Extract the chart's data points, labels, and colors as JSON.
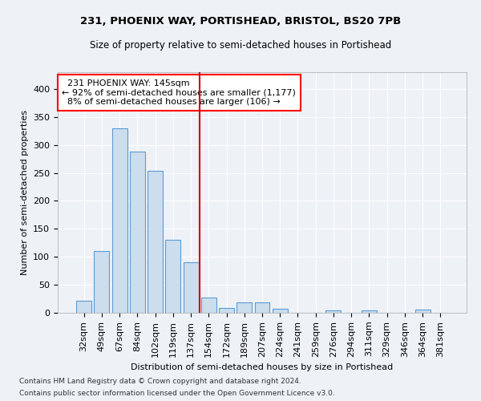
{
  "title_line1": "231, PHOENIX WAY, PORTISHEAD, BRISTOL, BS20 7PB",
  "title_line2": "Size of property relative to semi-detached houses in Portishead",
  "xlabel": "Distribution of semi-detached houses by size in Portishead",
  "ylabel": "Number of semi-detached properties",
  "categories": [
    "32sqm",
    "49sqm",
    "67sqm",
    "84sqm",
    "102sqm",
    "119sqm",
    "137sqm",
    "154sqm",
    "172sqm",
    "189sqm",
    "207sqm",
    "224sqm",
    "241sqm",
    "259sqm",
    "276sqm",
    "294sqm",
    "311sqm",
    "329sqm",
    "346sqm",
    "364sqm",
    "381sqm"
  ],
  "values": [
    22,
    110,
    330,
    288,
    253,
    131,
    90,
    27,
    9,
    18,
    18,
    7,
    0,
    0,
    4,
    0,
    4,
    0,
    0,
    6,
    0
  ],
  "bar_color": "#ccdded",
  "bar_edge_color": "#5b9bd5",
  "subject_line_color": "#cc0000",
  "subject_line_index": 6.5,
  "subject_label": "231 PHOENIX WAY: 145sqm",
  "pct_smaller": "92%",
  "n_smaller": "1,177",
  "pct_larger": "8%",
  "n_larger": "106",
  "ylim": [
    0,
    430
  ],
  "yticks": [
    0,
    50,
    100,
    150,
    200,
    250,
    300,
    350,
    400
  ],
  "footnote1": "Contains HM Land Registry data © Crown copyright and database right 2024.",
  "footnote2": "Contains public sector information licensed under the Open Government Licence v3.0.",
  "background_color": "#eef2f7",
  "grid_color": "#ffffff"
}
